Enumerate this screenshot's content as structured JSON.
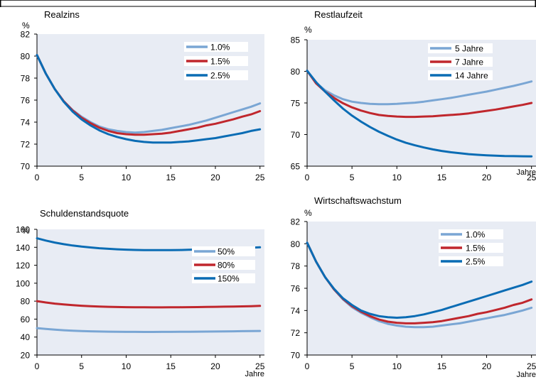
{
  "chart_data": [
    {
      "type": "line",
      "title": "Realzins",
      "ylabel": "%",
      "xlabel": "",
      "x_ticks": [
        0,
        5,
        10,
        15,
        20,
        25
      ],
      "y_ticks": [
        70,
        72,
        74,
        76,
        78,
        80,
        82
      ],
      "xlim": [
        0,
        25.5
      ],
      "ylim": [
        70,
        82
      ],
      "grid": false,
      "legend_position": "top-right",
      "series": [
        {
          "name": "1.0%",
          "color": "#7aa6d4",
          "x": [
            0,
            1,
            2,
            3,
            4,
            5,
            6,
            7,
            8,
            9,
            10,
            11,
            12,
            13,
            14,
            15,
            16,
            17,
            18,
            19,
            20,
            21,
            22,
            23,
            24,
            25
          ],
          "y": [
            80.1,
            78.4,
            77.0,
            75.9,
            75.1,
            74.5,
            74.0,
            73.6,
            73.35,
            73.2,
            73.1,
            73.05,
            73.1,
            73.2,
            73.3,
            73.45,
            73.6,
            73.75,
            73.95,
            74.15,
            74.4,
            74.65,
            74.9,
            75.15,
            75.4,
            75.7
          ]
        },
        {
          "name": "1.5%",
          "color": "#c0272d",
          "x": [
            0,
            1,
            2,
            3,
            4,
            5,
            6,
            7,
            8,
            9,
            10,
            11,
            12,
            13,
            14,
            15,
            16,
            17,
            18,
            19,
            20,
            21,
            22,
            23,
            24,
            25
          ],
          "y": [
            80.1,
            78.4,
            77.0,
            75.9,
            75.05,
            74.4,
            73.9,
            73.5,
            73.2,
            73.0,
            72.9,
            72.85,
            72.85,
            72.9,
            72.95,
            73.05,
            73.2,
            73.35,
            73.5,
            73.7,
            73.85,
            74.05,
            74.25,
            74.5,
            74.7,
            75.0
          ]
        },
        {
          "name": "2.5%",
          "color": "#0a6cb4",
          "x": [
            0,
            1,
            2,
            3,
            4,
            5,
            6,
            7,
            8,
            9,
            10,
            11,
            12,
            13,
            14,
            15,
            16,
            17,
            18,
            19,
            20,
            21,
            22,
            23,
            24,
            25
          ],
          "y": [
            80.1,
            78.4,
            77.0,
            75.85,
            74.95,
            74.25,
            73.7,
            73.25,
            72.9,
            72.65,
            72.45,
            72.3,
            72.2,
            72.15,
            72.15,
            72.15,
            72.2,
            72.25,
            72.35,
            72.45,
            72.55,
            72.7,
            72.85,
            73.0,
            73.2,
            73.35
          ]
        }
      ]
    },
    {
      "type": "line",
      "title": "Restlaufzeit",
      "ylabel": "%",
      "xlabel": "Jahre",
      "x_ticks": [
        0,
        5,
        10,
        15,
        20,
        25
      ],
      "y_ticks": [
        65,
        70,
        75,
        80,
        85
      ],
      "xlim": [
        0,
        25.5
      ],
      "ylim": [
        65,
        85
      ],
      "grid": false,
      "legend_position": "top-right",
      "series": [
        {
          "name": "5 Jahre",
          "color": "#7aa6d4",
          "x": [
            0,
            1,
            2,
            3,
            4,
            5,
            6,
            7,
            8,
            9,
            10,
            11,
            12,
            13,
            14,
            15,
            16,
            17,
            18,
            19,
            20,
            21,
            22,
            23,
            24,
            25
          ],
          "y": [
            80.1,
            78.2,
            77.0,
            76.2,
            75.6,
            75.2,
            75.0,
            74.85,
            74.8,
            74.8,
            74.85,
            74.95,
            75.05,
            75.2,
            75.4,
            75.6,
            75.8,
            76.05,
            76.3,
            76.55,
            76.8,
            77.1,
            77.4,
            77.7,
            78.05,
            78.4
          ]
        },
        {
          "name": "7 Jahre",
          "color": "#c0272d",
          "x": [
            0,
            1,
            2,
            3,
            4,
            5,
            6,
            7,
            8,
            9,
            10,
            11,
            12,
            13,
            14,
            15,
            16,
            17,
            18,
            19,
            20,
            21,
            22,
            23,
            24,
            25
          ],
          "y": [
            80.1,
            78.1,
            76.8,
            75.8,
            74.95,
            74.3,
            73.8,
            73.4,
            73.1,
            72.95,
            72.85,
            72.8,
            72.8,
            72.85,
            72.9,
            73.0,
            73.1,
            73.2,
            73.35,
            73.55,
            73.75,
            73.95,
            74.2,
            74.45,
            74.7,
            75.0
          ]
        },
        {
          "name": "14 Jahre",
          "color": "#0a6cb4",
          "x": [
            0,
            1,
            2,
            3,
            4,
            5,
            6,
            7,
            8,
            9,
            10,
            11,
            12,
            13,
            14,
            15,
            16,
            17,
            18,
            19,
            20,
            21,
            22,
            23,
            24,
            25
          ],
          "y": [
            80.1,
            78.3,
            76.8,
            75.4,
            74.1,
            73.0,
            72.05,
            71.2,
            70.45,
            69.8,
            69.2,
            68.7,
            68.3,
            67.95,
            67.65,
            67.4,
            67.2,
            67.05,
            66.9,
            66.8,
            66.72,
            66.65,
            66.6,
            66.58,
            66.56,
            66.55
          ]
        }
      ]
    },
    {
      "type": "line",
      "title": "Schuldenstandsquote",
      "ylabel": "%",
      "xlabel": "Jahre",
      "x_ticks": [
        0,
        5,
        10,
        15,
        20,
        25
      ],
      "y_ticks": [
        20,
        40,
        60,
        80,
        100,
        120,
        140,
        160
      ],
      "xlim": [
        0,
        25.5
      ],
      "ylim": [
        20,
        160
      ],
      "grid": false,
      "legend_position": "right",
      "series": [
        {
          "name": "50%",
          "color": "#7aa6d4",
          "x": [
            0,
            1,
            2,
            3,
            4,
            5,
            6,
            7,
            8,
            9,
            10,
            11,
            12,
            13,
            14,
            15,
            16,
            17,
            18,
            19,
            20,
            21,
            22,
            23,
            24,
            25
          ],
          "y": [
            50.0,
            49.0,
            48.2,
            47.6,
            47.1,
            46.7,
            46.4,
            46.2,
            46.0,
            45.9,
            45.8,
            45.75,
            45.7,
            45.7,
            45.75,
            45.8,
            45.85,
            45.9,
            46.0,
            46.1,
            46.2,
            46.3,
            46.4,
            46.55,
            46.7,
            46.8
          ]
        },
        {
          "name": "80%",
          "color": "#c0272d",
          "x": [
            0,
            1,
            2,
            3,
            4,
            5,
            6,
            7,
            8,
            9,
            10,
            11,
            12,
            13,
            14,
            15,
            16,
            17,
            18,
            19,
            20,
            21,
            22,
            23,
            24,
            25
          ],
          "y": [
            80.0,
            78.5,
            77.3,
            76.3,
            75.5,
            74.9,
            74.4,
            74.0,
            73.7,
            73.5,
            73.35,
            73.2,
            73.15,
            73.1,
            73.1,
            73.15,
            73.2,
            73.3,
            73.4,
            73.55,
            73.7,
            73.85,
            74.0,
            74.2,
            74.4,
            74.7
          ]
        },
        {
          "name": "150%",
          "color": "#0a6cb4",
          "x": [
            0,
            1,
            2,
            3,
            4,
            5,
            6,
            7,
            8,
            9,
            10,
            11,
            12,
            13,
            14,
            15,
            16,
            17,
            18,
            19,
            20,
            21,
            22,
            23,
            24,
            25
          ],
          "y": [
            150.0,
            147.5,
            145.3,
            143.5,
            142.0,
            140.8,
            139.8,
            139.0,
            138.3,
            137.8,
            137.4,
            137.1,
            136.9,
            136.8,
            136.8,
            136.9,
            137.0,
            137.2,
            137.45,
            137.7,
            138.0,
            138.35,
            138.7,
            139.1,
            139.5,
            140.0
          ]
        }
      ]
    },
    {
      "type": "line",
      "title": "Wirtschaftswachstum",
      "ylabel": "%",
      "xlabel": "Jahre",
      "x_ticks": [
        0,
        5,
        10,
        15,
        20,
        25
      ],
      "y_ticks": [
        70,
        72,
        74,
        76,
        78,
        80,
        82
      ],
      "xlim": [
        0,
        25.5
      ],
      "ylim": [
        70,
        82
      ],
      "grid": false,
      "legend_position": "top-right",
      "series": [
        {
          "name": "1.0%",
          "color": "#7aa6d4",
          "x": [
            0,
            1,
            2,
            3,
            4,
            5,
            6,
            7,
            8,
            9,
            10,
            11,
            12,
            13,
            14,
            15,
            16,
            17,
            18,
            19,
            20,
            21,
            22,
            23,
            24,
            25
          ],
          "y": [
            80.1,
            78.4,
            77.0,
            75.9,
            75.0,
            74.3,
            73.8,
            73.4,
            73.05,
            72.8,
            72.65,
            72.55,
            72.5,
            72.5,
            72.55,
            72.65,
            72.75,
            72.85,
            73.0,
            73.15,
            73.3,
            73.45,
            73.6,
            73.8,
            74.0,
            74.25
          ]
        },
        {
          "name": "1.5%",
          "color": "#c0272d",
          "x": [
            0,
            1,
            2,
            3,
            4,
            5,
            6,
            7,
            8,
            9,
            10,
            11,
            12,
            13,
            14,
            15,
            16,
            17,
            18,
            19,
            20,
            21,
            22,
            23,
            24,
            25
          ],
          "y": [
            80.1,
            78.4,
            77.0,
            75.9,
            75.05,
            74.4,
            73.9,
            73.5,
            73.2,
            73.0,
            72.9,
            72.85,
            72.85,
            72.9,
            72.95,
            73.05,
            73.2,
            73.35,
            73.5,
            73.7,
            73.85,
            74.05,
            74.25,
            74.5,
            74.7,
            75.0
          ]
        },
        {
          "name": "2.5%",
          "color": "#0a6cb4",
          "x": [
            0,
            1,
            2,
            3,
            4,
            5,
            6,
            7,
            8,
            9,
            10,
            11,
            12,
            13,
            14,
            15,
            16,
            17,
            18,
            19,
            20,
            21,
            22,
            23,
            24,
            25
          ],
          "y": [
            80.1,
            78.4,
            77.0,
            75.95,
            75.1,
            74.5,
            74.0,
            73.7,
            73.5,
            73.4,
            73.35,
            73.4,
            73.5,
            73.65,
            73.85,
            74.05,
            74.3,
            74.55,
            74.8,
            75.05,
            75.3,
            75.55,
            75.8,
            76.05,
            76.3,
            76.6
          ]
        }
      ]
    }
  ]
}
